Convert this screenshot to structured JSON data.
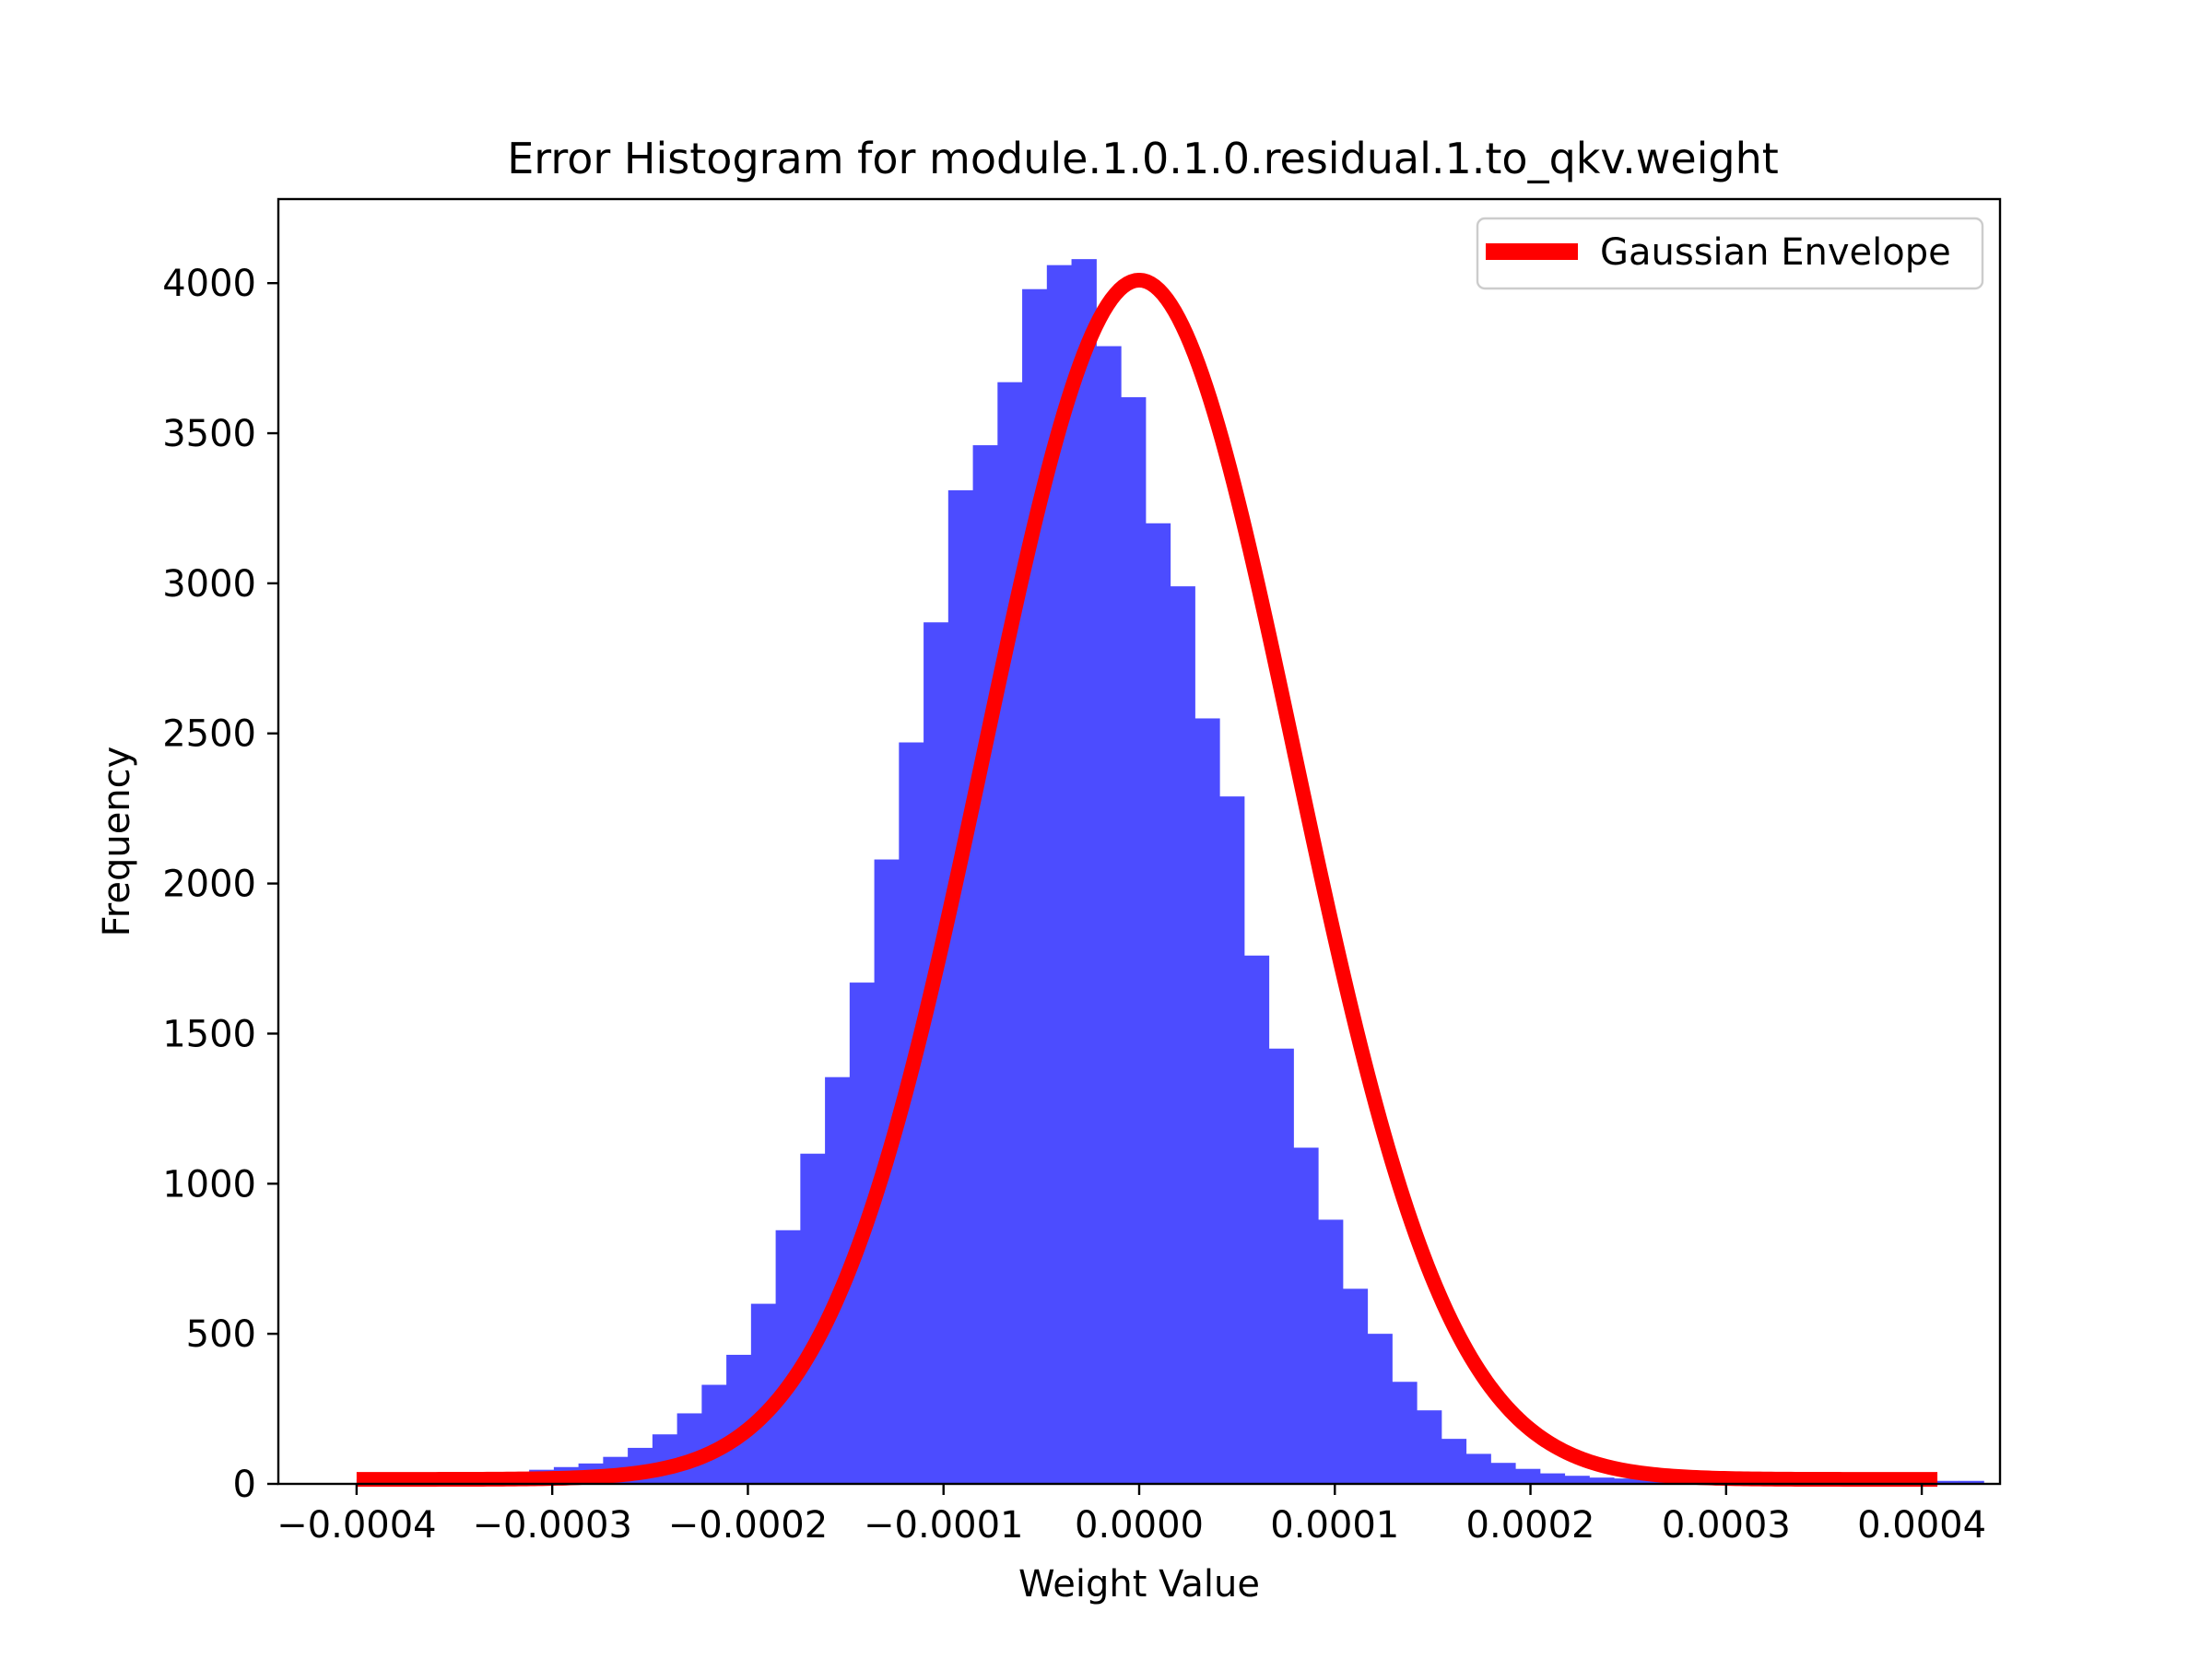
{
  "chart_data": {
    "type": "bar",
    "title": "Error Histogram for module.1.0.1.0.residual.1.to_qkv.weight",
    "xlabel": "Weight Value",
    "ylabel": "Frequency",
    "xlim": [
      -0.00044,
      0.00044
    ],
    "ylim": [
      0,
      4280
    ],
    "grid": false,
    "legend_position": "top-right",
    "xticks": [
      -0.0004,
      -0.0003,
      -0.0002,
      -0.0001,
      0.0,
      0.0001,
      0.0002,
      0.0003,
      0.0004
    ],
    "xtick_labels": [
      "−0.0004",
      "−0.0003",
      "−0.0002",
      "−0.0001",
      "0.0000",
      "0.0001",
      "0.0002",
      "0.0003",
      "0.0004"
    ],
    "yticks": [
      0,
      500,
      1000,
      1500,
      2000,
      2500,
      3000,
      3500,
      4000
    ],
    "ytick_labels": [
      "0",
      "500",
      "1000",
      "1500",
      "2000",
      "2500",
      "3000",
      "3500",
      "4000"
    ],
    "histogram": {
      "color": "#4c4cff",
      "bin_start": -0.0004,
      "bin_width": 1.26e-05,
      "counts": [
        15,
        17,
        19,
        22,
        26,
        31,
        38,
        47,
        56,
        68,
        90,
        120,
        165,
        235,
        330,
        430,
        600,
        845,
        1100,
        1355,
        1670,
        2080,
        2470,
        2870,
        3310,
        3460,
        3670,
        3980,
        4060,
        4080,
        3790,
        3620,
        3200,
        2990,
        2550,
        2290,
        1760,
        1450,
        1120,
        880,
        650,
        500,
        340,
        245,
        150,
        100,
        70,
        50,
        35,
        27,
        21,
        18,
        15,
        13,
        12,
        11,
        11,
        11,
        10,
        10,
        10,
        10,
        10,
        10,
        10,
        10
      ]
    },
    "series": [
      {
        "name": "Gaussian Envelope",
        "type": "line",
        "color": "#ff0000",
        "mean": 0.0,
        "sigma": 7.93e-05,
        "amplitude": 4010,
        "x_range": [
          -0.0004,
          0.000408
        ],
        "baseline": 15
      }
    ]
  }
}
